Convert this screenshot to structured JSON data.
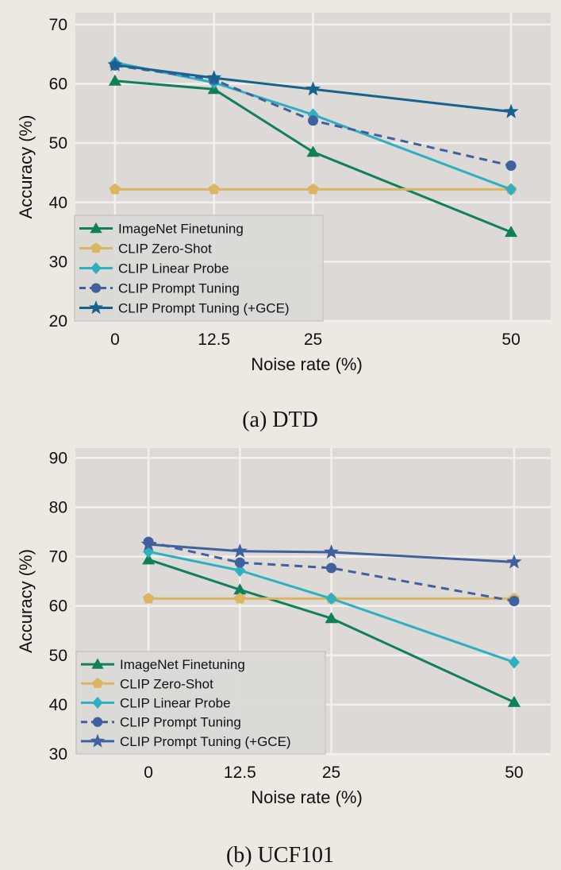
{
  "chart_data": [
    {
      "type": "line",
      "caption": "(a) DTD",
      "xlabel": "Noise rate (%)",
      "ylabel": "Accuracy (%)",
      "x": [
        0,
        12.5,
        25,
        50
      ],
      "x_tick_labels": [
        "0",
        "12.5",
        "25",
        "50"
      ],
      "y_ticks": [
        20,
        30,
        40,
        50,
        60,
        70
      ],
      "xlim": [
        -5,
        55
      ],
      "ylim": [
        20,
        72
      ],
      "grid": true,
      "legend_position": "lower-left",
      "series": [
        {
          "name": "ImageNet Finetuning",
          "values": [
            60.5,
            59.1,
            48.5,
            35.0
          ],
          "color": "#10805a",
          "marker": "triangle",
          "dashed": false
        },
        {
          "name": "CLIP Zero-Shot",
          "values": [
            42.2,
            42.2,
            42.2,
            42.2
          ],
          "color": "#dbb562",
          "marker": "pentagon",
          "dashed": false
        },
        {
          "name": "CLIP Linear Probe",
          "values": [
            63.6,
            60.2,
            54.8,
            42.2
          ],
          "color": "#2fb0c0",
          "marker": "diamond",
          "dashed": false
        },
        {
          "name": "CLIP Prompt Tuning",
          "values": [
            63.1,
            60.7,
            53.8,
            46.2
          ],
          "color": "#41609e",
          "marker": "circle",
          "dashed": true
        },
        {
          "name": "CLIP Prompt Tuning (+GCE)",
          "values": [
            63.2,
            61.0,
            59.1,
            55.3
          ],
          "color": "#17628f",
          "marker": "star",
          "dashed": false
        }
      ]
    },
    {
      "type": "line",
      "caption": "(b) UCF101",
      "xlabel": "Noise rate (%)",
      "ylabel": "Accuracy (%)",
      "x": [
        0,
        12.5,
        25,
        50
      ],
      "x_tick_labels": [
        "0",
        "12.5",
        "25",
        "50"
      ],
      "y_ticks": [
        30,
        40,
        50,
        60,
        70,
        80,
        90
      ],
      "xlim": [
        -10,
        55
      ],
      "ylim": [
        30,
        92
      ],
      "grid": true,
      "legend_position": "lower-left",
      "series": [
        {
          "name": "ImageNet Finetuning",
          "values": [
            69.4,
            63.3,
            57.5,
            40.5
          ],
          "color": "#10805a",
          "marker": "triangle",
          "dashed": false
        },
        {
          "name": "CLIP Zero-Shot",
          "values": [
            61.5,
            61.5,
            61.5,
            61.5
          ],
          "color": "#dbb562",
          "marker": "pentagon",
          "dashed": false
        },
        {
          "name": "CLIP Linear Probe",
          "values": [
            71.0,
            67.2,
            61.5,
            48.6
          ],
          "color": "#2fb0c0",
          "marker": "diamond",
          "dashed": false
        },
        {
          "name": "CLIP Prompt Tuning",
          "values": [
            73.0,
            68.8,
            67.7,
            61.0
          ],
          "color": "#41609e",
          "marker": "circle",
          "dashed": true
        },
        {
          "name": "CLIP Prompt Tuning (+GCE)",
          "values": [
            72.5,
            71.1,
            70.9,
            68.9
          ],
          "color": "#41609e",
          "marker": "star",
          "dashed": false
        }
      ]
    }
  ]
}
